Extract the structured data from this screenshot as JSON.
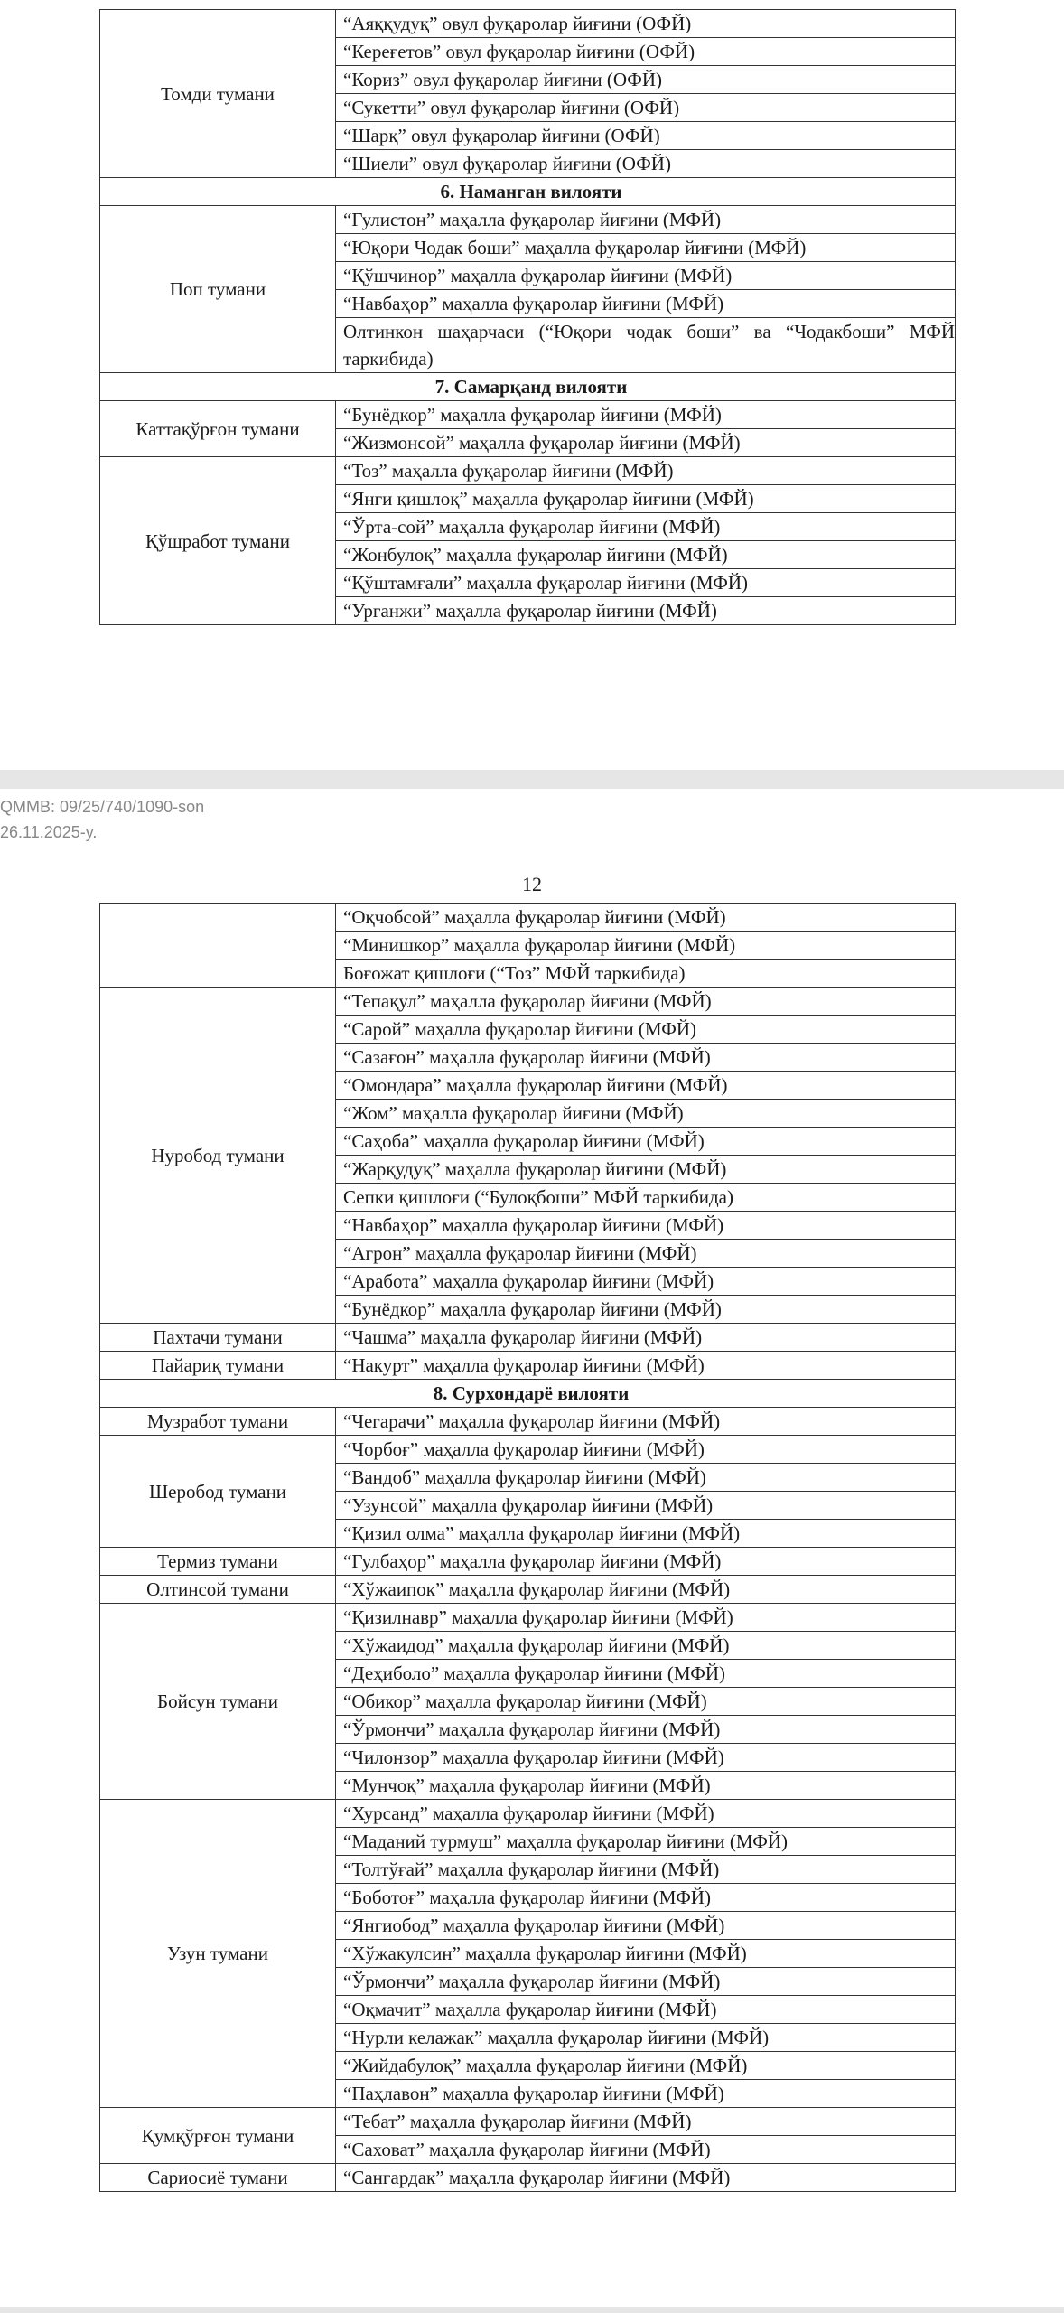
{
  "page1": {
    "rows": [
      {
        "district": "Томди тумани",
        "items": [
          "“Аяққудуқ” овул фуқаролар йиғини (ОФЙ)",
          "“Кереғетов” овул фуқаролар йиғини (ОФЙ)",
          "“Кориз” овул фуқаролар йиғини (ОФЙ)",
          "“Сукетти” овул фуқаролар йиғини (ОФЙ)",
          "“Шарқ” овул фуқаролар йиғини (ОФЙ)",
          "“Шиели” овул фуқаролар йиғини (ОФЙ)"
        ]
      },
      {
        "region": "6. Наманган вилояти"
      },
      {
        "district": "Поп тумани",
        "items": [
          "“Гулистон” маҳалла фуқаролар йиғини (МФЙ)",
          "“Юқори Чодак боши” маҳалла фуқаролар йиғини (МФЙ)",
          "“Қўшчинор” маҳалла фуқаролар йиғини (МФЙ)",
          "“Навбаҳор” маҳалла фуқаролар йиғини (МФЙ)",
          "Олтинкон шаҳарчаси (“Юқори чодак боши” ва “Чодакбоши” МФЙ таркибида)"
        ]
      },
      {
        "region": "7. Самарқанд вилояти"
      },
      {
        "district": "Каттақўрғон тумани",
        "items": [
          "“Бунёдкор” маҳалла фуқаролар йиғини (МФЙ)",
          "“Жизмонсой” маҳалла фуқаролар йиғини (МФЙ)"
        ]
      },
      {
        "district": "Қўшработ тумани",
        "items": [
          "“Тоз” маҳалла фуқаролар йиғини (МФЙ)",
          "“Янги қишлоқ” маҳалла фуқаролар йиғини (МФЙ)",
          "“Ўрта-сой” маҳалла фуқаролар йиғини (МФЙ)",
          "“Жонбулоқ” маҳалла фуқаролар йиғини (МФЙ)",
          "“Қўштамғали” маҳалла фуқаролар йиғини (МФЙ)",
          "“Урганжи” маҳалла фуқаролар йиғини (МФЙ)"
        ]
      }
    ]
  },
  "stamp": {
    "line1": "QMMB: 09/25/740/1090-son",
    "line2": "26.11.2025-y."
  },
  "page2": {
    "number": "12",
    "rows": [
      {
        "items": [
          "“Оқчобсой” маҳалла фуқаролар йиғини (МФЙ)",
          "“Минишкор” маҳалла фуқаролар йиғини (МФЙ)",
          "Боғожат қишлоғи (“Тоз” МФЙ таркибида)"
        ]
      },
      {
        "district": "Нуробод тумани",
        "items": [
          "“Тепақул” маҳалла фуқаролар йиғини (МФЙ)",
          "“Сарой” маҳалла фуқаролар йиғини (МФЙ)",
          "“Сазағон” маҳалла фуқаролар йиғини (МФЙ)",
          "“Омондара” маҳалла фуқаролар йиғини (МФЙ)",
          "“Жом” маҳалла фуқаролар йиғини (МФЙ)",
          "“Саҳоба” маҳалла фуқаролар йиғини (МФЙ)",
          "“Жарқудуқ” маҳалла фуқаролар йиғини (МФЙ)",
          "Сепки қишлоғи (“Булоқбоши” МФЙ таркибида)",
          "“Навбаҳор” маҳалла фуқаролар йиғини (МФЙ)",
          "“Агрон” маҳалла фуқаролар йиғини (МФЙ)",
          "“Аработа” маҳалла фуқаролар йиғини (МФЙ)",
          "“Бунёдкор” маҳалла фуқаролар йиғини (МФЙ)"
        ]
      },
      {
        "district": "Пахтачи тумани",
        "items": [
          "“Чашма” маҳалла фуқаролар йиғини (МФЙ)"
        ]
      },
      {
        "district": "Пайариқ тумани",
        "items": [
          "“Накурт” маҳалла фуқаролар йиғини (МФЙ)"
        ]
      },
      {
        "region": "8. Сурхондарё вилояти"
      },
      {
        "district": "Музработ тумани",
        "items": [
          "“Чегарачи” маҳалла фуқаролар йиғини (МФЙ)"
        ]
      },
      {
        "district": "Шеробод тумани",
        "items": [
          "“Чорбоғ” маҳалла фуқаролар йиғини (МФЙ)",
          "“Вандоб” маҳалла фуқаролар йиғини (МФЙ)",
          "“Узунсой” маҳалла фуқаролар йиғини (МФЙ)",
          "“Қизил олма” маҳалла фуқаролар йиғини (МФЙ)"
        ]
      },
      {
        "district": "Термиз тумани",
        "items": [
          "“Гулбаҳор” маҳалла фуқаролар йиғини (МФЙ)"
        ]
      },
      {
        "district": "Олтинсой тумани",
        "items": [
          "“Хўжаипок” маҳалла фуқаролар йиғини (МФЙ)"
        ]
      },
      {
        "district": "Бойсун тумани",
        "items": [
          "“Қизилнавр” маҳалла фуқаролар йиғини (МФЙ)",
          "“Хўжаидод” маҳалла фуқаролар йиғини (МФЙ)",
          "“Деҳиболо” маҳалла фуқаролар йиғини (МФЙ)",
          "“Обикор” маҳалла фуқаролар йиғини (МФЙ)",
          "“Ўрмончи” маҳалла фуқаролар йиғини (МФЙ)",
          "“Чилонзор” маҳалла фуқаролар йиғини (МФЙ)",
          "“Мунчоқ” маҳалла фуқаролар йиғини (МФЙ)"
        ]
      },
      {
        "district": "Узун тумани",
        "items": [
          "“Хурсанд” маҳалла фуқаролар йиғини (МФЙ)",
          "“Маданий турмуш” маҳалла фуқаролар йиғини (МФЙ)",
          "“Толтўғай” маҳалла фуқаролар йиғини (МФЙ)",
          "“Боботоғ” маҳалла фуқаролар йиғини (МФЙ)",
          "“Янгиобод” маҳалла фуқаролар йиғини (МФЙ)",
          "“Хўжакулсин” маҳалла фуқаролар йиғини (МФЙ)",
          "“Ўрмончи” маҳалла фуқаролар йиғини (МФЙ)",
          "“Оқмачит” маҳалла фуқаролар йиғини (МФЙ)",
          "“Нурли келажак” маҳалла фуқаролар йиғини (МФЙ)",
          "“Жийдабулоқ” маҳалла фуқаролар йиғини (МФЙ)",
          "“Паҳлавон” маҳалла фуқаролар йиғини (МФЙ)"
        ]
      },
      {
        "district": "Қумқўрғон тумани",
        "items": [
          "“Тебат” маҳалла фуқаролар йиғини (МФЙ)",
          "“Саховат” маҳалла фуқаролар йиғини (МФЙ)"
        ]
      },
      {
        "district": "Сариосиё тумани",
        "items": [
          "“Сангардак” маҳалла фуқаролар йиғини (МФЙ)"
        ]
      }
    ]
  }
}
